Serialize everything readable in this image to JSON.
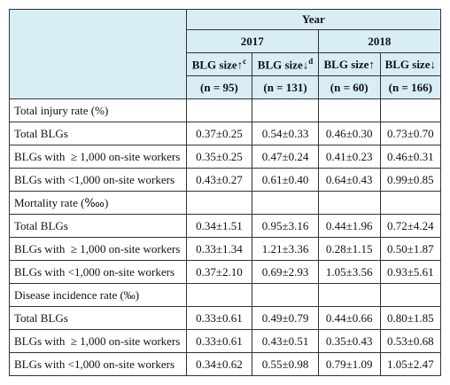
{
  "header": {
    "year": "Year",
    "years": [
      "2017",
      "2018"
    ],
    "groups": [
      {
        "label": "BLG size↑",
        "sup": "c"
      },
      {
        "label": "BLG size↓",
        "sup": "d"
      },
      {
        "label": "BLG size↑"
      },
      {
        "label": "BLG size↓"
      }
    ],
    "n": [
      "(n = 95)",
      "(n = 131)",
      "(n = 60)",
      "(n = 166)"
    ]
  },
  "rows": [
    {
      "label": "Total injury rate (%)"
    },
    {
      "label": "Total BLGs",
      "cells": [
        "0.37±0.25",
        "0.54±0.33",
        "0.46±0.30",
        "0.73±0.70"
      ]
    },
    {
      "label": "BLGs with  ≥ 1,000 on-site workers",
      "cells": [
        "0.35±0.25",
        "0.47±0.24",
        "0.41±0.23",
        "0.46±0.31"
      ]
    },
    {
      "label": "BLGs with <1,000 on-site workers",
      "cells": [
        "0.43±0.27",
        "0.61±0.40",
        "0.64±0.43",
        "0.99±0.85"
      ]
    },
    {
      "label": "Mortality rate (‱)"
    },
    {
      "label": "Total BLGs",
      "cells": [
        "0.34±1.51",
        "0.95±3.16",
        "0.44±1.96",
        "0.72±4.24"
      ]
    },
    {
      "label": "BLGs with  ≥ 1,000 on-site workers",
      "cells": [
        "0.33±1.34",
        "1.21±3.36",
        "0.28±1.15",
        "0.50±1.87"
      ]
    },
    {
      "label": "BLGs with <1,000 on-site workers",
      "cells": [
        "0.37±2.10",
        "0.69±2.93",
        "1.05±3.56",
        "0.93±5.61"
      ]
    },
    {
      "label": "Disease incidence rate (‰)"
    },
    {
      "label": "Total BLGs",
      "cells": [
        "0.33±0.61",
        "0.49±0.79",
        "0.44±0.66",
        "0.80±1.85"
      ]
    },
    {
      "label": "BLGs with  ≥ 1,000 on-site workers",
      "cells": [
        "0.33±0.61",
        "0.43±0.51",
        "0.35±0.43",
        "0.53±0.68"
      ]
    },
    {
      "label": "BLGs with <1,000 on-site workers",
      "cells": [
        "0.34±0.62",
        "0.55±0.98",
        "0.79±1.09",
        "1.05±2.47"
      ]
    }
  ]
}
